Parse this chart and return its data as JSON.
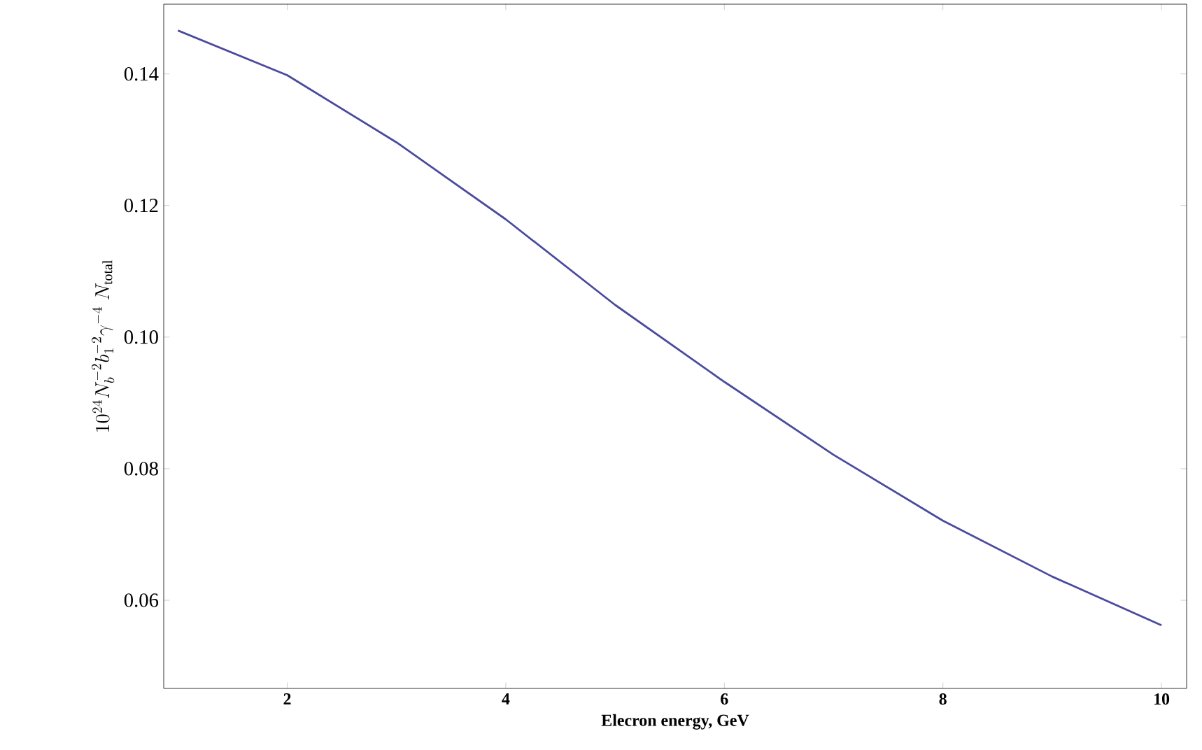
{
  "chart_data": {
    "type": "line",
    "xlabel": "Elecron energy, GeV",
    "ylabel": "10^{24}N_b^{-2}b_1^{-2}\\gamma^{-4}\\;N_{\\mathrm{total}}",
    "x": [
      1,
      2,
      3,
      4,
      5,
      6,
      7,
      8,
      9,
      10
    ],
    "series": [
      {
        "color": "#4b4b9e",
        "values": [
          0.1466,
          0.1398,
          0.1296,
          0.1179,
          0.1049,
          0.0932,
          0.0821,
          0.0721,
          0.0636,
          0.0562
        ]
      }
    ],
    "xlim": [
      0.87,
      10.23
    ],
    "ylim": [
      0.0466,
      0.1506
    ],
    "xticks": [
      2,
      4,
      6,
      8,
      10
    ],
    "yticks": [
      0.06,
      0.08,
      {
        "value": 0.1,
        "label": "0.10"
      },
      0.12,
      0.14
    ],
    "marker": "none",
    "line_style": "solid"
  }
}
